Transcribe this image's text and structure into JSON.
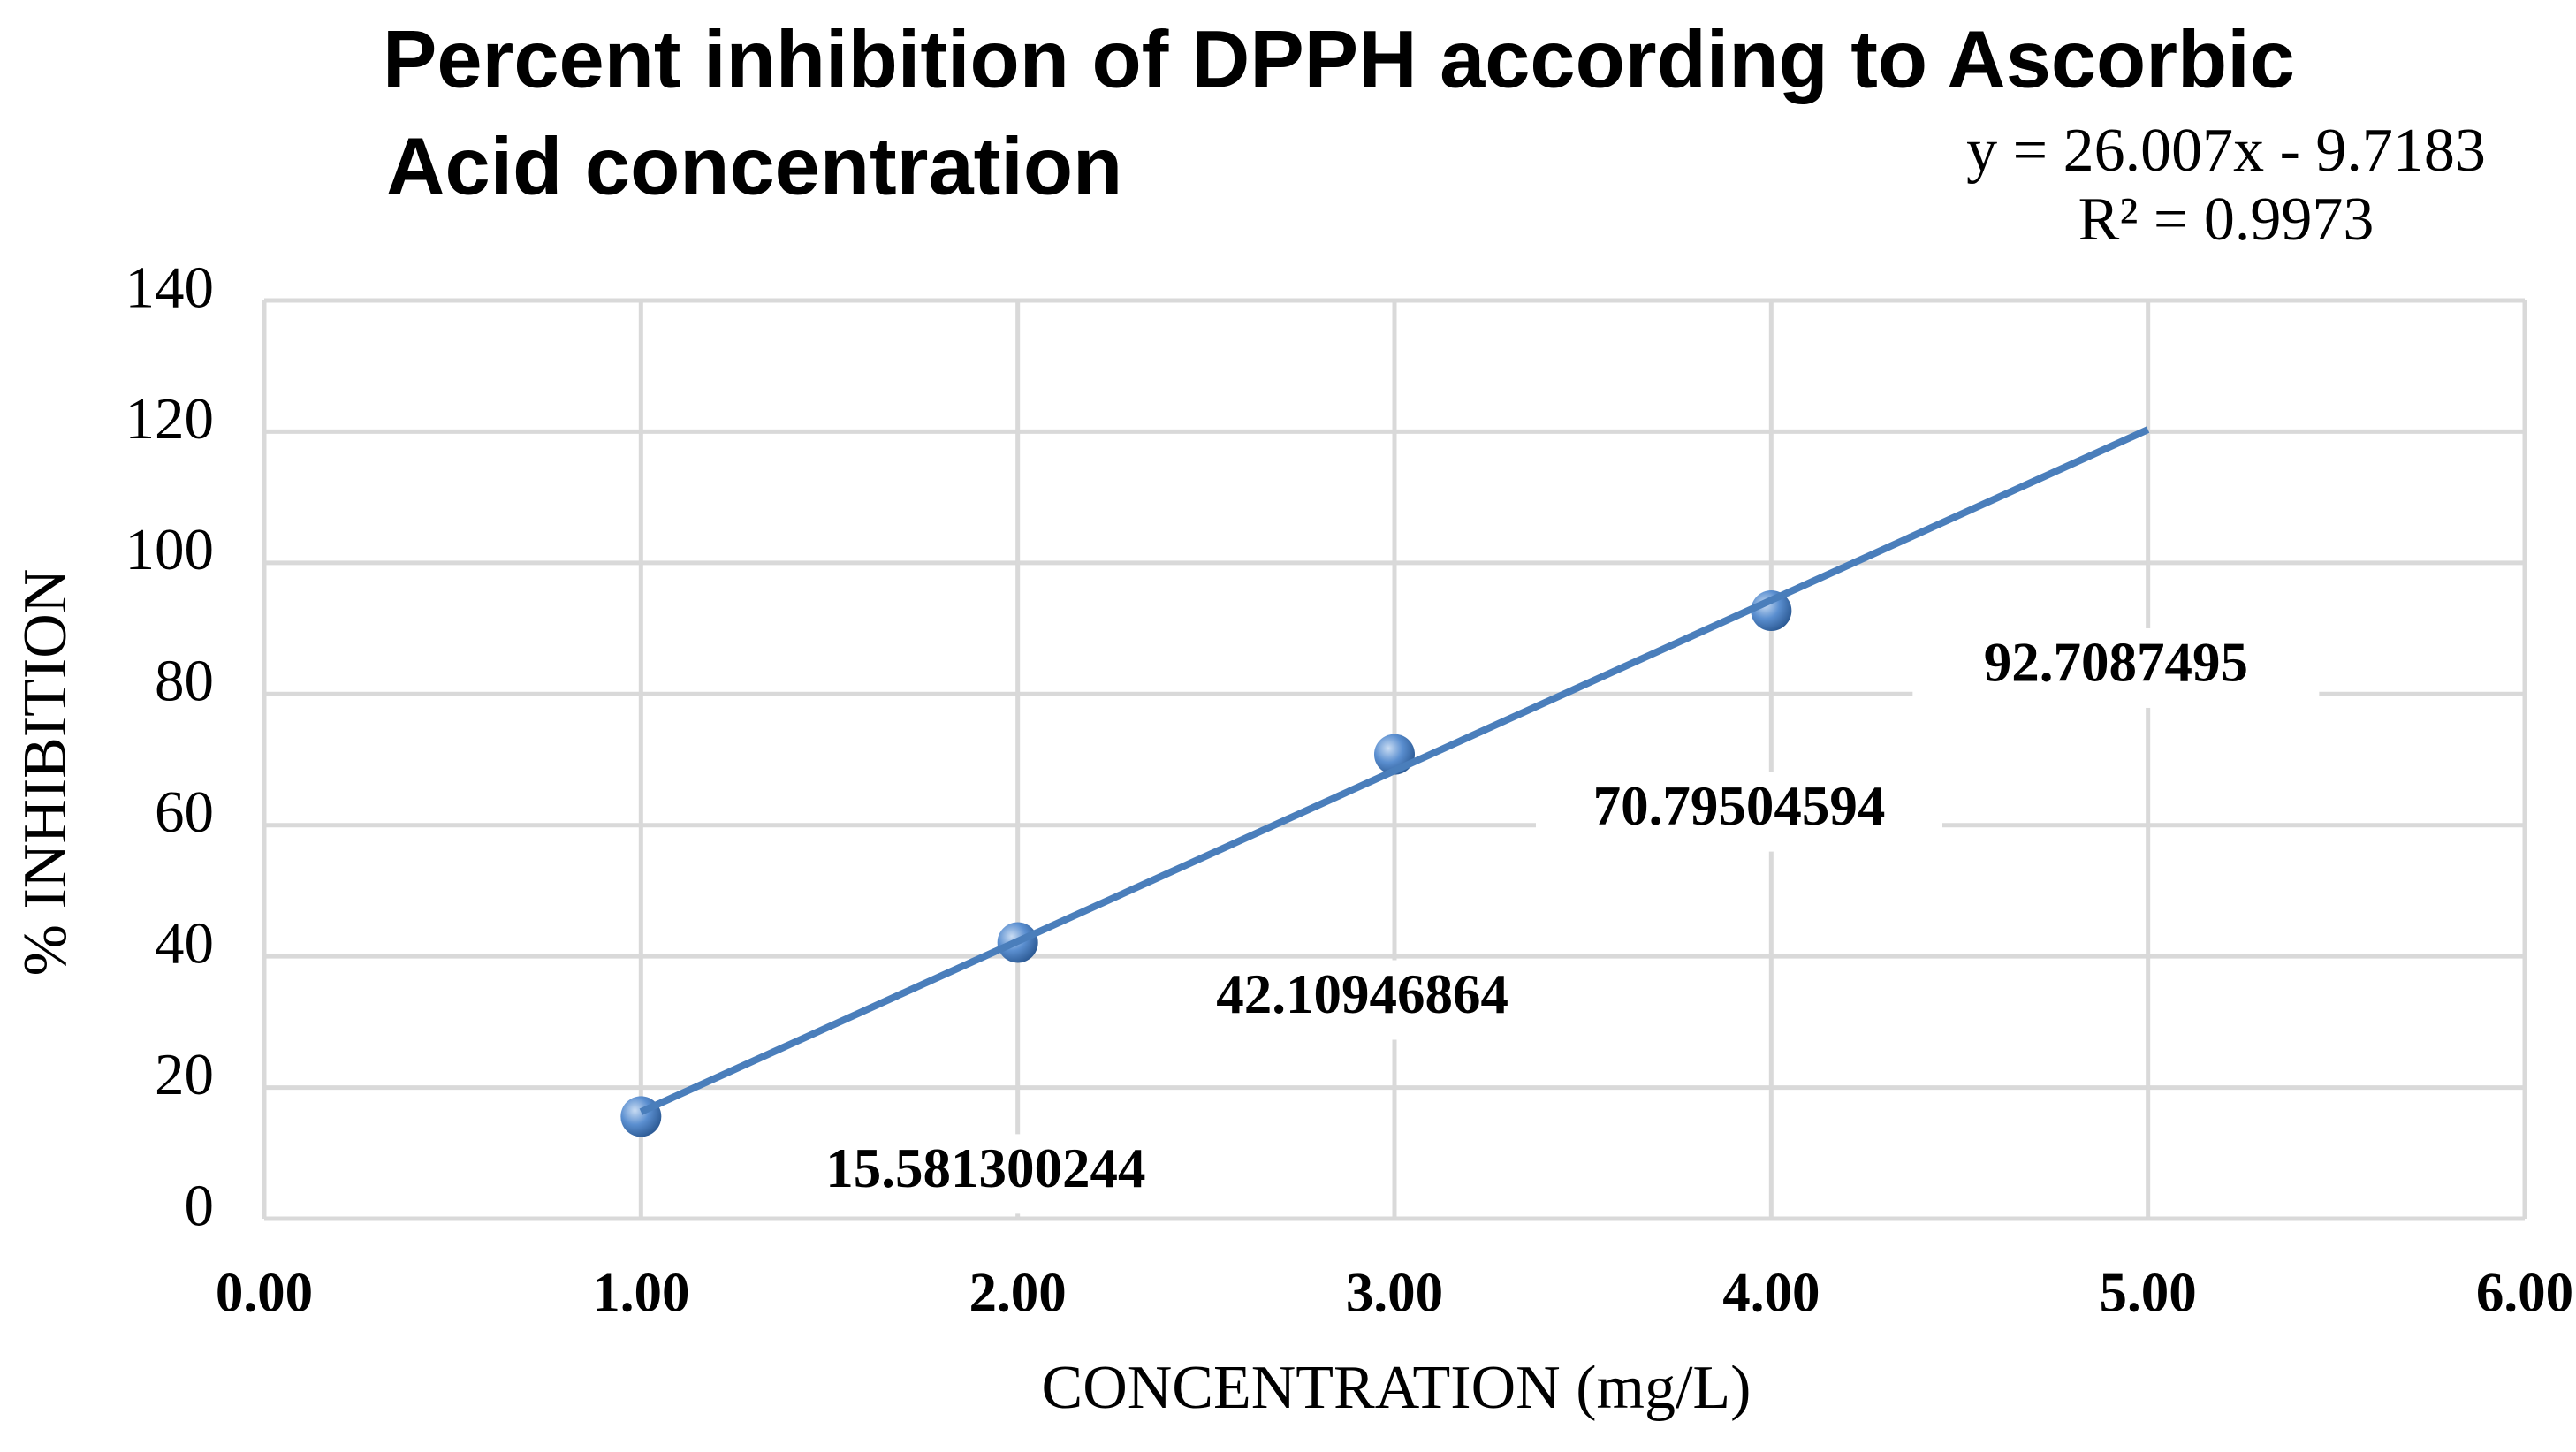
{
  "chart_data": {
    "type": "scatter",
    "title": [
      "Percent inhibition of DPPH according to Ascorbic",
      "Acid concentration"
    ],
    "x_label": "CONCENTRATION (mg/L)",
    "y_label": "% INHIBITION",
    "x": [
      1,
      2,
      3,
      4
    ],
    "values": [
      15.581300244,
      42.10946864,
      70.79504594,
      92.7087495
    ],
    "color": "#4a7ebb",
    "xlim": [
      0,
      6
    ],
    "xticks": [
      {
        "value": 0,
        "label": "0.00"
      },
      {
        "value": 1,
        "label": "1.00"
      },
      {
        "value": 2,
        "label": "2.00"
      },
      {
        "value": 3,
        "label": "3.00"
      },
      {
        "value": 4,
        "label": "4.00"
      },
      {
        "value": 5,
        "label": "5.00"
      },
      {
        "value": 6,
        "label": "6.00"
      }
    ],
    "ylim": [
      0,
      140
    ],
    "yticks": [
      0,
      20,
      40,
      60,
      80,
      100,
      120,
      140
    ],
    "grid": true,
    "trendline": {
      "equation": "y = 26.007x - 9.7183",
      "r_squared": "R² = 0.9973",
      "slope": 26.007,
      "intercept": -9.7183,
      "x": [
        1,
        5
      ]
    }
  }
}
